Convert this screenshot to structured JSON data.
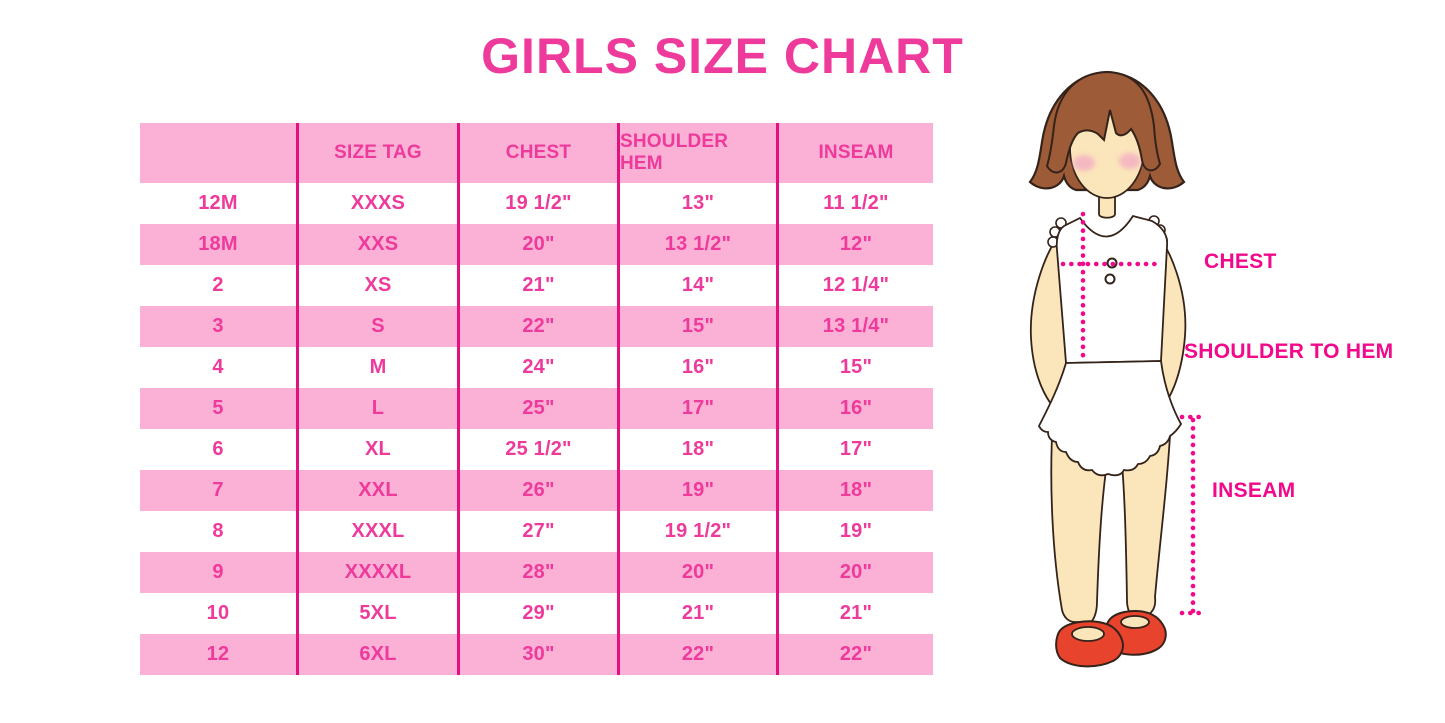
{
  "page_title": "GIRLS SIZE CHART",
  "colors": {
    "title_text": "#ee3a9b",
    "table_text": "#ee3a9b",
    "row_pink": "#fbb0d6",
    "divider": "#e3117f",
    "measure": "#f2088a",
    "hair": "#9d5b38",
    "skin": "#fbe5ba",
    "cheek": "#f3aec3",
    "shoe": "#e8432c",
    "outline": "#34231a"
  },
  "chart_data": {
    "type": "table",
    "title": "GIRLS SIZE CHART",
    "columns": [
      "",
      "SIZE TAG",
      "CHEST",
      "SHOULDER HEM",
      "INSEAM"
    ],
    "rows": [
      [
        "12M",
        "XXXS",
        "19 1/2\"",
        "13\"",
        "11 1/2\""
      ],
      [
        "18M",
        "XXS",
        "20\"",
        "13 1/2\"",
        "12\""
      ],
      [
        "2",
        "XS",
        "21\"",
        "14\"",
        "12 1/4\""
      ],
      [
        "3",
        "S",
        "22\"",
        "15\"",
        "13 1/4\""
      ],
      [
        "4",
        "M",
        "24\"",
        "16\"",
        "15\""
      ],
      [
        "5",
        "L",
        "25\"",
        "17\"",
        "16\""
      ],
      [
        "6",
        "XL",
        "25 1/2\"",
        "18\"",
        "17\""
      ],
      [
        "7",
        "XXL",
        "26\"",
        "19\"",
        "18\""
      ],
      [
        "8",
        "XXXL",
        "27\"",
        "19 1/2\"",
        "19\""
      ],
      [
        "9",
        "XXXXL",
        "28\"",
        "20\"",
        "20\""
      ],
      [
        "10",
        "5XL",
        "29\"",
        "21\"",
        "21\""
      ],
      [
        "12",
        "6XL",
        "30\"",
        "22\"",
        "22\""
      ]
    ],
    "row_striping": "header pink, then alternating white/pink starting with white",
    "legend_position": "none",
    "grid": "vertical magenta column dividers only"
  },
  "figure": {
    "chest_label": "CHEST",
    "shoulder_to_hem_label": "SHOULDER TO HEM",
    "inseam_label": "INSEAM"
  }
}
